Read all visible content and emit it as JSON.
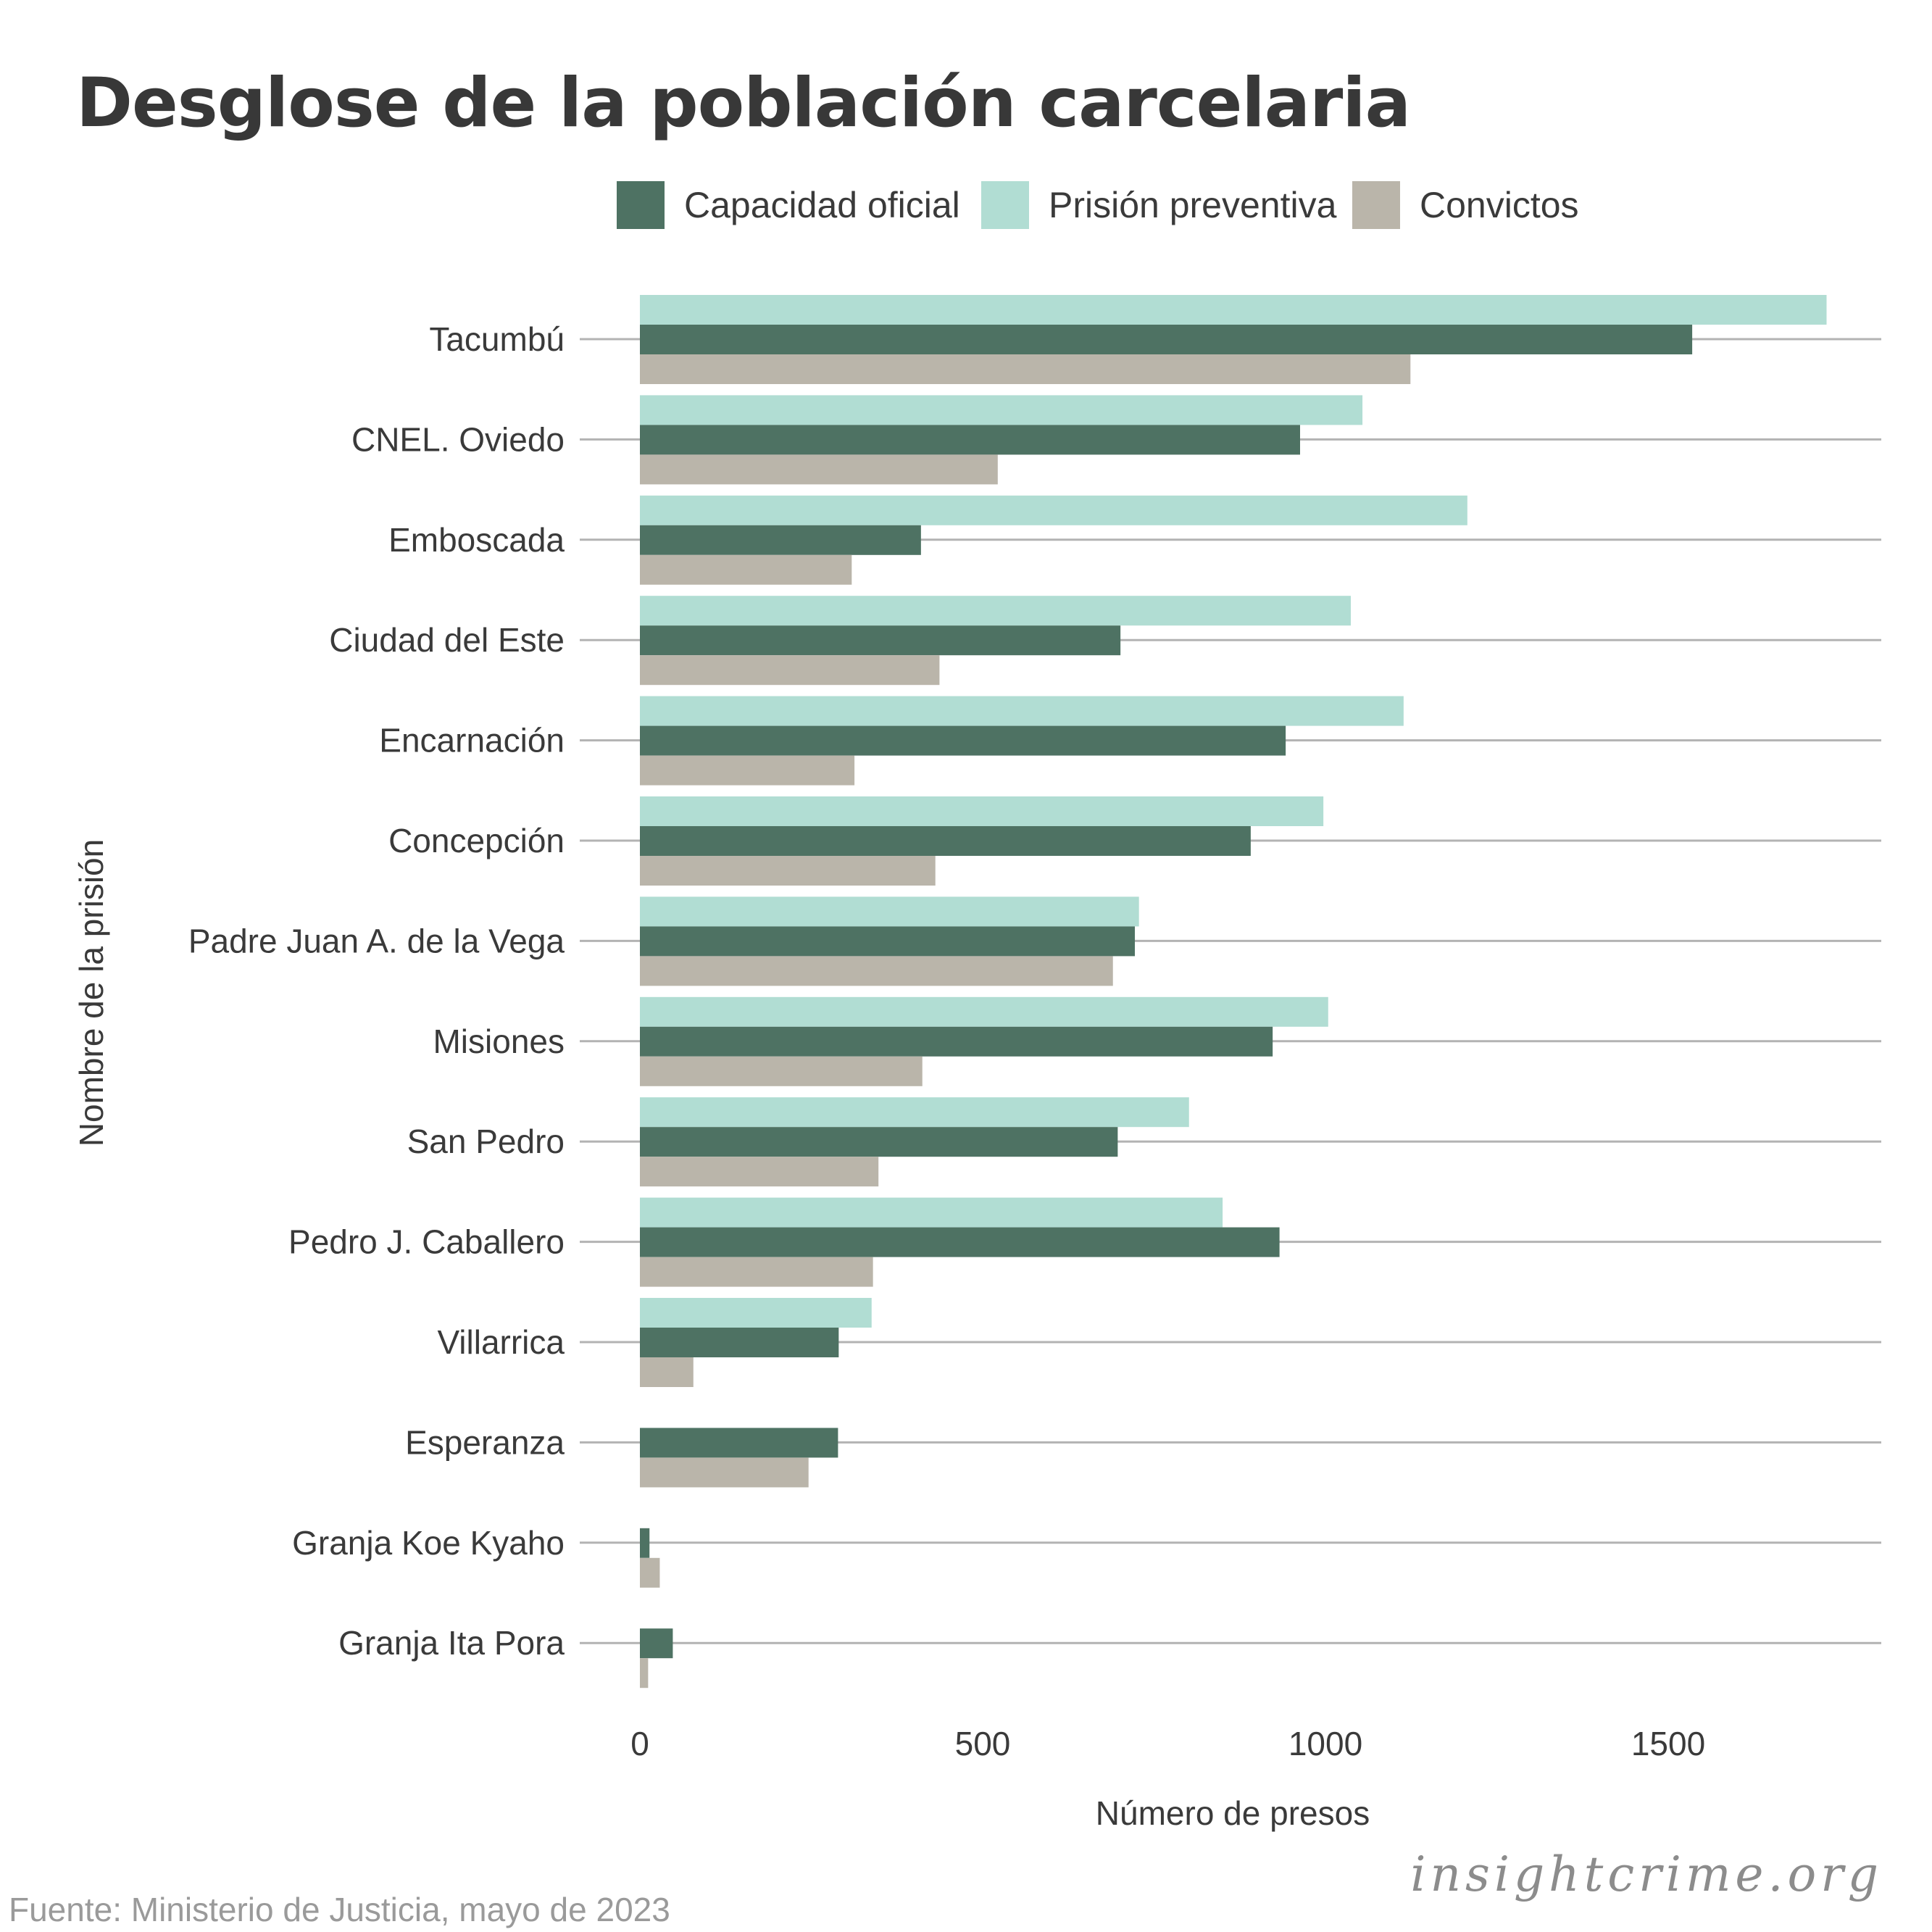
{
  "chart_data": {
    "type": "bar",
    "orientation": "horizontal",
    "title": "Desglose de la población carcelaria",
    "xlabel": "Número de presos",
    "ylabel": "Nombre de la prisión",
    "xlim": [
      0,
      1820
    ],
    "xticks": [
      0,
      500,
      1000,
      1500
    ],
    "xtick_labels": [
      "0",
      "500",
      "1000",
      "1500"
    ],
    "grid": "horizontal",
    "legend_position": "top",
    "categories": [
      "Tacumbú",
      "CNEL. Oviedo",
      "Emboscada",
      "Ciudad del Este",
      "Encarnación",
      "Concepción",
      "Padre Juan A. de la Vega",
      "Misiones",
      "San Pedro",
      "Pedro J. Caballero",
      "Villarrica",
      "Esperanza",
      "Granja Koe Kyaho",
      "Granja Ita Pora"
    ],
    "series": [
      {
        "name": "Capacidad oficial",
        "color": "#4e7263",
        "values": [
          1535,
          963,
          410,
          701,
          942,
          891,
          722,
          923,
          697,
          933,
          290,
          289,
          14,
          48
        ]
      },
      {
        "name": "Prisión preventiva",
        "color": "#b1ddd3",
        "values": [
          1731,
          1054,
          1207,
          1037,
          1114,
          997,
          728,
          1004,
          801,
          850,
          338,
          0,
          0,
          0
        ]
      },
      {
        "name": "Convictos",
        "color": "#bab5aa",
        "values": [
          1124,
          522,
          309,
          437,
          313,
          431,
          690,
          412,
          348,
          340,
          78,
          246,
          29,
          12
        ]
      }
    ]
  },
  "source": "Fuente: Ministerio de Justicia, mayo de 2023",
  "brand": "insightcrime.org"
}
